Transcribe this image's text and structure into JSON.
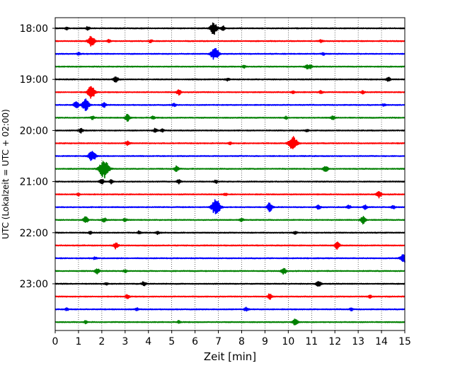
{
  "chart_data": {
    "type": "line",
    "title": "",
    "xlabel": "Zeit  [min]",
    "ylabel": "UTC (Lokalzeit = UTC + 02:00)",
    "xlim": [
      0,
      15
    ],
    "x_ticks": [
      0,
      1,
      2,
      3,
      4,
      5,
      6,
      7,
      8,
      9,
      10,
      11,
      12,
      13,
      14,
      15
    ],
    "y_tick_labels": [
      "18:00",
      "19:00",
      "20:00",
      "21:00",
      "22:00",
      "23:00"
    ],
    "grid": "vertical dotted",
    "trace_interval_minutes": 15,
    "color_cycle": [
      "#000000",
      "#ff0000",
      "#0000ff",
      "#008000"
    ],
    "traces": [
      {
        "time": "18:00",
        "color": "#000000",
        "events": [
          [
            0.5,
            0.5
          ],
          [
            1.4,
            0.6
          ],
          [
            6.8,
            2.2
          ],
          [
            7.2,
            0.8
          ]
        ]
      },
      {
        "time": "18:15",
        "color": "#ff0000",
        "events": [
          [
            1.55,
            2.0
          ],
          [
            2.3,
            0.6
          ],
          [
            4.1,
            0.6
          ],
          [
            11.4,
            0.5
          ]
        ]
      },
      {
        "time": "18:30",
        "color": "#0000ff",
        "events": [
          [
            1.0,
            0.5
          ],
          [
            6.8,
            2.0
          ],
          [
            6.95,
            1.0
          ],
          [
            11.5,
            0.5
          ]
        ]
      },
      {
        "time": "18:45",
        "color": "#008000",
        "events": [
          [
            8.1,
            0.5
          ],
          [
            10.8,
            0.8
          ],
          [
            10.95,
            0.6
          ]
        ]
      },
      {
        "time": "19:00",
        "color": "#000000",
        "events": [
          [
            2.6,
            1.2
          ],
          [
            7.4,
            0.5
          ],
          [
            14.3,
            0.8
          ]
        ]
      },
      {
        "time": "19:15",
        "color": "#ff0000",
        "events": [
          [
            1.55,
            2.5
          ],
          [
            5.3,
            1.0
          ],
          [
            10.2,
            0.5
          ],
          [
            11.4,
            0.6
          ],
          [
            13.2,
            0.5
          ]
        ]
      },
      {
        "time": "19:30",
        "color": "#0000ff",
        "events": [
          [
            0.9,
            1.3
          ],
          [
            1.3,
            2.2
          ],
          [
            2.1,
            0.8
          ],
          [
            5.1,
            0.6
          ],
          [
            14.1,
            0.4
          ]
        ]
      },
      {
        "time": "19:45",
        "color": "#008000",
        "events": [
          [
            1.6,
            0.6
          ],
          [
            3.1,
            1.3
          ],
          [
            4.2,
            0.6
          ],
          [
            9.9,
            0.5
          ],
          [
            11.9,
            0.8
          ]
        ]
      },
      {
        "time": "20:00",
        "color": "#000000",
        "events": [
          [
            1.1,
            0.9
          ],
          [
            4.3,
            0.8
          ],
          [
            4.6,
            0.5
          ],
          [
            10.8,
            0.5
          ]
        ]
      },
      {
        "time": "20:15",
        "color": "#ff0000",
        "events": [
          [
            3.1,
            0.8
          ],
          [
            10.2,
            2.8
          ],
          [
            7.5,
            0.5
          ]
        ]
      },
      {
        "time": "20:30",
        "color": "#0000ff",
        "events": [
          [
            1.55,
            1.8
          ],
          [
            1.7,
            0.8
          ]
        ]
      },
      {
        "time": "20:45",
        "color": "#008000",
        "events": [
          [
            2.1,
            3.5
          ],
          [
            5.2,
            1.0
          ],
          [
            11.6,
            1.2
          ]
        ]
      },
      {
        "time": "21:00",
        "color": "#000000",
        "events": [
          [
            2.0,
            1.0
          ],
          [
            2.4,
            0.7
          ],
          [
            5.3,
            0.8
          ],
          [
            6.9,
            0.6
          ]
        ]
      },
      {
        "time": "21:15",
        "color": "#ff0000",
        "events": [
          [
            1.0,
            0.5
          ],
          [
            7.3,
            0.5
          ],
          [
            13.9,
            1.2
          ]
        ]
      },
      {
        "time": "21:30",
        "color": "#0000ff",
        "events": [
          [
            6.9,
            3.0
          ],
          [
            9.2,
            1.6
          ],
          [
            11.3,
            0.8
          ],
          [
            12.6,
            0.7
          ],
          [
            13.3,
            0.8
          ],
          [
            14.5,
            0.7
          ]
        ]
      },
      {
        "time": "21:45",
        "color": "#008000",
        "events": [
          [
            1.3,
            1.3
          ],
          [
            2.1,
            0.8
          ],
          [
            3.0,
            0.6
          ],
          [
            8.0,
            0.6
          ],
          [
            13.2,
            1.4
          ]
        ]
      },
      {
        "time": "22:00",
        "color": "#000000",
        "events": [
          [
            1.5,
            0.5
          ],
          [
            3.6,
            0.6
          ],
          [
            4.4,
            0.6
          ],
          [
            10.3,
            0.5
          ]
        ]
      },
      {
        "time": "22:15",
        "color": "#ff0000",
        "events": [
          [
            2.6,
            1.2
          ],
          [
            12.1,
            1.3
          ]
        ]
      },
      {
        "time": "22:30",
        "color": "#0000ff",
        "events": [
          [
            1.7,
            0.5
          ],
          [
            14.95,
            1.8
          ]
        ]
      },
      {
        "time": "22:45",
        "color": "#008000",
        "events": [
          [
            1.8,
            1.0
          ],
          [
            3.0,
            0.6
          ],
          [
            9.8,
            1.3
          ]
        ]
      },
      {
        "time": "23:00",
        "color": "#000000",
        "events": [
          [
            2.2,
            0.5
          ],
          [
            3.8,
            0.8
          ],
          [
            11.3,
            1.2
          ]
        ]
      },
      {
        "time": "23:15",
        "color": "#ff0000",
        "events": [
          [
            3.1,
            0.8
          ],
          [
            9.2,
            1.0
          ],
          [
            13.5,
            0.5
          ]
        ]
      },
      {
        "time": "23:30",
        "color": "#0000ff",
        "events": [
          [
            0.5,
            0.5
          ],
          [
            3.5,
            0.5
          ],
          [
            8.2,
            0.8
          ],
          [
            12.7,
            0.5
          ]
        ]
      },
      {
        "time": "23:45",
        "color": "#008000",
        "events": [
          [
            1.3,
            0.5
          ],
          [
            5.3,
            0.5
          ],
          [
            10.3,
            1.3
          ]
        ]
      }
    ]
  }
}
